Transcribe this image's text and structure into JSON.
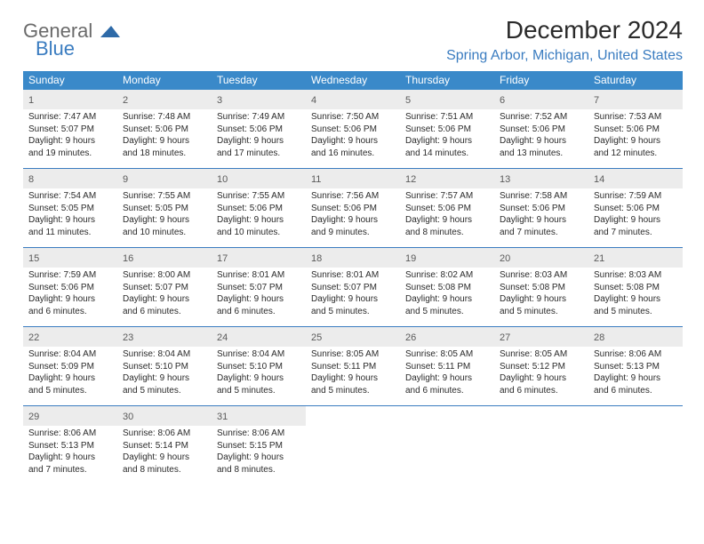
{
  "logo": {
    "line1": "General",
    "line2": "Blue"
  },
  "title": "December 2024",
  "location": "Spring Arbor, Michigan, United States",
  "colors": {
    "header_bg": "#3a89c9",
    "accent": "#3a7cc0",
    "daynum_bg": "#ececec",
    "text": "#2a2a2a",
    "logo_gray": "#6a6a6a"
  },
  "weekdays": [
    "Sunday",
    "Monday",
    "Tuesday",
    "Wednesday",
    "Thursday",
    "Friday",
    "Saturday"
  ],
  "weeks": [
    [
      {
        "n": "1",
        "sunrise": "7:47 AM",
        "sunset": "5:07 PM",
        "daylight": "9 hours and 19 minutes."
      },
      {
        "n": "2",
        "sunrise": "7:48 AM",
        "sunset": "5:06 PM",
        "daylight": "9 hours and 18 minutes."
      },
      {
        "n": "3",
        "sunrise": "7:49 AM",
        "sunset": "5:06 PM",
        "daylight": "9 hours and 17 minutes."
      },
      {
        "n": "4",
        "sunrise": "7:50 AM",
        "sunset": "5:06 PM",
        "daylight": "9 hours and 16 minutes."
      },
      {
        "n": "5",
        "sunrise": "7:51 AM",
        "sunset": "5:06 PM",
        "daylight": "9 hours and 14 minutes."
      },
      {
        "n": "6",
        "sunrise": "7:52 AM",
        "sunset": "5:06 PM",
        "daylight": "9 hours and 13 minutes."
      },
      {
        "n": "7",
        "sunrise": "7:53 AM",
        "sunset": "5:06 PM",
        "daylight": "9 hours and 12 minutes."
      }
    ],
    [
      {
        "n": "8",
        "sunrise": "7:54 AM",
        "sunset": "5:05 PM",
        "daylight": "9 hours and 11 minutes."
      },
      {
        "n": "9",
        "sunrise": "7:55 AM",
        "sunset": "5:05 PM",
        "daylight": "9 hours and 10 minutes."
      },
      {
        "n": "10",
        "sunrise": "7:55 AM",
        "sunset": "5:06 PM",
        "daylight": "9 hours and 10 minutes."
      },
      {
        "n": "11",
        "sunrise": "7:56 AM",
        "sunset": "5:06 PM",
        "daylight": "9 hours and 9 minutes."
      },
      {
        "n": "12",
        "sunrise": "7:57 AM",
        "sunset": "5:06 PM",
        "daylight": "9 hours and 8 minutes."
      },
      {
        "n": "13",
        "sunrise": "7:58 AM",
        "sunset": "5:06 PM",
        "daylight": "9 hours and 7 minutes."
      },
      {
        "n": "14",
        "sunrise": "7:59 AM",
        "sunset": "5:06 PM",
        "daylight": "9 hours and 7 minutes."
      }
    ],
    [
      {
        "n": "15",
        "sunrise": "7:59 AM",
        "sunset": "5:06 PM",
        "daylight": "9 hours and 6 minutes."
      },
      {
        "n": "16",
        "sunrise": "8:00 AM",
        "sunset": "5:07 PM",
        "daylight": "9 hours and 6 minutes."
      },
      {
        "n": "17",
        "sunrise": "8:01 AM",
        "sunset": "5:07 PM",
        "daylight": "9 hours and 6 minutes."
      },
      {
        "n": "18",
        "sunrise": "8:01 AM",
        "sunset": "5:07 PM",
        "daylight": "9 hours and 5 minutes."
      },
      {
        "n": "19",
        "sunrise": "8:02 AM",
        "sunset": "5:08 PM",
        "daylight": "9 hours and 5 minutes."
      },
      {
        "n": "20",
        "sunrise": "8:03 AM",
        "sunset": "5:08 PM",
        "daylight": "9 hours and 5 minutes."
      },
      {
        "n": "21",
        "sunrise": "8:03 AM",
        "sunset": "5:08 PM",
        "daylight": "9 hours and 5 minutes."
      }
    ],
    [
      {
        "n": "22",
        "sunrise": "8:04 AM",
        "sunset": "5:09 PM",
        "daylight": "9 hours and 5 minutes."
      },
      {
        "n": "23",
        "sunrise": "8:04 AM",
        "sunset": "5:10 PM",
        "daylight": "9 hours and 5 minutes."
      },
      {
        "n": "24",
        "sunrise": "8:04 AM",
        "sunset": "5:10 PM",
        "daylight": "9 hours and 5 minutes."
      },
      {
        "n": "25",
        "sunrise": "8:05 AM",
        "sunset": "5:11 PM",
        "daylight": "9 hours and 5 minutes."
      },
      {
        "n": "26",
        "sunrise": "8:05 AM",
        "sunset": "5:11 PM",
        "daylight": "9 hours and 6 minutes."
      },
      {
        "n": "27",
        "sunrise": "8:05 AM",
        "sunset": "5:12 PM",
        "daylight": "9 hours and 6 minutes."
      },
      {
        "n": "28",
        "sunrise": "8:06 AM",
        "sunset": "5:13 PM",
        "daylight": "9 hours and 6 minutes."
      }
    ],
    [
      {
        "n": "29",
        "sunrise": "8:06 AM",
        "sunset": "5:13 PM",
        "daylight": "9 hours and 7 minutes."
      },
      {
        "n": "30",
        "sunrise": "8:06 AM",
        "sunset": "5:14 PM",
        "daylight": "9 hours and 8 minutes."
      },
      {
        "n": "31",
        "sunrise": "8:06 AM",
        "sunset": "5:15 PM",
        "daylight": "9 hours and 8 minutes."
      },
      null,
      null,
      null,
      null
    ]
  ],
  "labels": {
    "sunrise": "Sunrise:",
    "sunset": "Sunset:",
    "daylight": "Daylight:"
  }
}
